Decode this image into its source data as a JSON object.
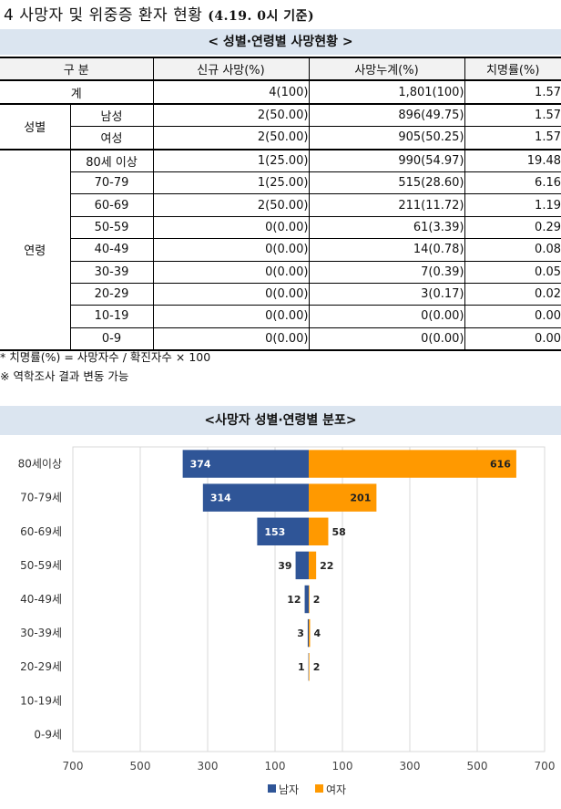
{
  "header": {
    "title": "4 사망자 및 위중증 환자 현황",
    "subtitle": "(4.19. 0시 기준)"
  },
  "table": {
    "banner": "< 성별·연령별 사망현황 >",
    "headers": [
      "구 분",
      "신규 사망(%)",
      "사망누계(%)",
      "치명률(%)"
    ],
    "total": {
      "label": "계",
      "new": "4(100)",
      "cum": "1,801(100)",
      "rate": "1.57"
    },
    "sex_group": "성별",
    "sex": [
      {
        "label": "남성",
        "new": "2(50.00)",
        "cum": "896(49.75)",
        "rate": "1.57"
      },
      {
        "label": "여성",
        "new": "2(50.00)",
        "cum": "905(50.25)",
        "rate": "1.57"
      }
    ],
    "age_group": "연령",
    "ages": [
      {
        "label": "80세 이상",
        "new": "1(25.00)",
        "cum": "990(54.97)",
        "rate": "19.48"
      },
      {
        "label": "70-79",
        "new": "1(25.00)",
        "cum": "515(28.60)",
        "rate": "6.16"
      },
      {
        "label": "60-69",
        "new": "2(50.00)",
        "cum": "211(11.72)",
        "rate": "1.19"
      },
      {
        "label": "50-59",
        "new": "0(0.00)",
        "cum": "61(3.39)",
        "rate": "0.29"
      },
      {
        "label": "40-49",
        "new": "0(0.00)",
        "cum": "14(0.78)",
        "rate": "0.08"
      },
      {
        "label": "30-39",
        "new": "0(0.00)",
        "cum": "7(0.39)",
        "rate": "0.05"
      },
      {
        "label": "20-29",
        "new": "0(0.00)",
        "cum": "3(0.17)",
        "rate": "0.02"
      },
      {
        "label": "10-19",
        "new": "0(0.00)",
        "cum": "0(0.00)",
        "rate": "0.00"
      },
      {
        "label": "0-9",
        "new": "0(0.00)",
        "cum": "0(0.00)",
        "rate": "0.00"
      }
    ]
  },
  "notes": [
    "* 치명률(%) = 사망자수 / 확진자수 × 100",
    "※ 역학조사 결과 변동 가능"
  ],
  "chart_data": {
    "type": "bar",
    "orientation": "horizontal-population-pyramid",
    "title": "<사망자 성별·연령별 분포>",
    "categories": [
      "80세이상",
      "70-79세",
      "60-69세",
      "50-59세",
      "40-49세",
      "30-39세",
      "20-29세",
      "10-19세",
      "0-9세"
    ],
    "series": [
      {
        "name": "남자",
        "color": "#2f5597",
        "values": [
          374,
          314,
          153,
          39,
          12,
          3,
          1,
          0,
          0
        ]
      },
      {
        "name": "여자",
        "color": "#ff9900",
        "values": [
          616,
          201,
          58,
          22,
          2,
          4,
          2,
          0,
          0
        ]
      }
    ],
    "xlim": [
      -700,
      700
    ],
    "xticks": [
      {
        "value": -700,
        "label": "700"
      },
      {
        "value": -500,
        "label": "500"
      },
      {
        "value": -300,
        "label": "300"
      },
      {
        "value": -100,
        "label": "100"
      },
      {
        "value": 100,
        "label": "100"
      },
      {
        "value": 300,
        "label": "300"
      },
      {
        "value": 500,
        "label": "500"
      },
      {
        "value": 700,
        "label": "700"
      }
    ],
    "legend_position": "bottom"
  }
}
